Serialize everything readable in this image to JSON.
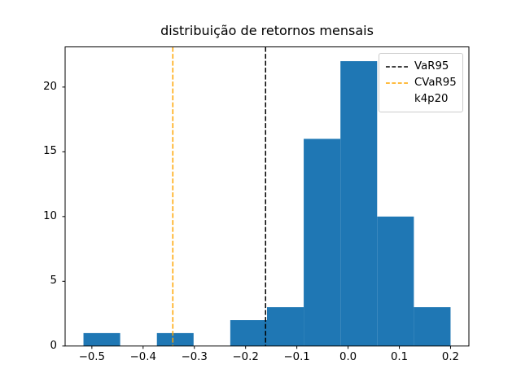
{
  "chart_data": {
    "type": "bar",
    "subtype": "histogram",
    "title": "distribuição de retornos mensais",
    "xlabel": "",
    "ylabel": "",
    "grid": false,
    "bar_color": "#1f77b4",
    "axis_color": "#000000",
    "xlim": [
      -0.5522,
      0.2358
    ],
    "ylim": [
      0,
      23.1
    ],
    "bin_edges": [
      -0.5164,
      -0.4448,
      -0.3731,
      -0.3015,
      -0.2299,
      -0.1582,
      -0.0866,
      -0.0149,
      0.0567,
      0.1284,
      0.2
    ],
    "counts": [
      1,
      0,
      1,
      0,
      2,
      3,
      16,
      22,
      10,
      3
    ],
    "xticks": [
      {
        "value": -0.5,
        "label": "−0.5"
      },
      {
        "value": -0.4,
        "label": "−0.4"
      },
      {
        "value": -0.3,
        "label": "−0.3"
      },
      {
        "value": -0.2,
        "label": "−0.2"
      },
      {
        "value": -0.1,
        "label": "−0.1"
      },
      {
        "value": 0.0,
        "label": "0.0"
      },
      {
        "value": 0.1,
        "label": "0.1"
      },
      {
        "value": 0.2,
        "label": "0.2"
      }
    ],
    "yticks": [
      {
        "value": 0,
        "label": "0"
      },
      {
        "value": 5,
        "label": "5"
      },
      {
        "value": 10,
        "label": "10"
      },
      {
        "value": 15,
        "label": "15"
      },
      {
        "value": 20,
        "label": "20"
      }
    ],
    "vlines": [
      {
        "name": "VaR95",
        "x": -0.161,
        "color": "#000000",
        "style": "dashed"
      },
      {
        "name": "CVaR95",
        "x": -0.342,
        "color": "#ffa500",
        "style": "dashed"
      }
    ],
    "legend": {
      "position": "upper right",
      "entries": [
        {
          "label": "VaR95",
          "handle": "dashed-line",
          "color": "#000000"
        },
        {
          "label": "CVaR95",
          "handle": "dashed-line",
          "color": "#ffa500"
        },
        {
          "label": "k4p20",
          "handle": "none",
          "color": null
        }
      ]
    }
  }
}
